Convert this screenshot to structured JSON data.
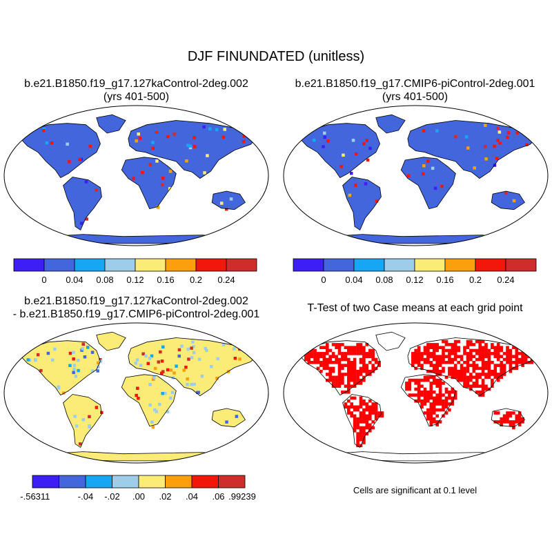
{
  "title": "DJF FINUNDATED (unitless)",
  "panels": [
    {
      "title_line1": "b.e21.B1850.f19_g17.127kaControl-2deg.002",
      "title_line2": "(yrs 401-500)"
    },
    {
      "title_line1": "b.e21.B1850.f19_g17.CMIP6-piControl-2deg.001",
      "title_line2": "(yrs 401-500)"
    },
    {
      "title_line1": "b.e21.B1850.f19_g17.127kaControl-2deg.002",
      "title_line2": "- b.e21.B1850.f19_g17.CMIP6-piControl-2deg.001"
    },
    {
      "title_line1": "T-Test of two Case means at each grid point",
      "title_line2": ""
    }
  ],
  "colorbar_abs": {
    "colors": [
      "#3d1ef5",
      "#4366dd",
      "#16a6f3",
      "#9ecdea",
      "#fbec78",
      "#fb9f0d",
      "#f3160a",
      "#cf2c2c"
    ],
    "labels": [
      "0",
      "0.04",
      "0.08",
      "0.12",
      "0.16",
      "0.2",
      "0.24"
    ]
  },
  "colorbar_diff": {
    "colors": [
      "#3d1ef5",
      "#4366dd",
      "#16a6f3",
      "#9ecdea",
      "#fbec78",
      "#fb9f0d",
      "#f3160a",
      "#cf2c2c"
    ],
    "labels": [
      "-.56311",
      "-.04",
      "-.02",
      ".00",
      ".02",
      ".04",
      ".06",
      ".99239"
    ]
  },
  "significance_note": "Cells are significant at 0.1 level",
  "significance_color": "#ff0000"
}
